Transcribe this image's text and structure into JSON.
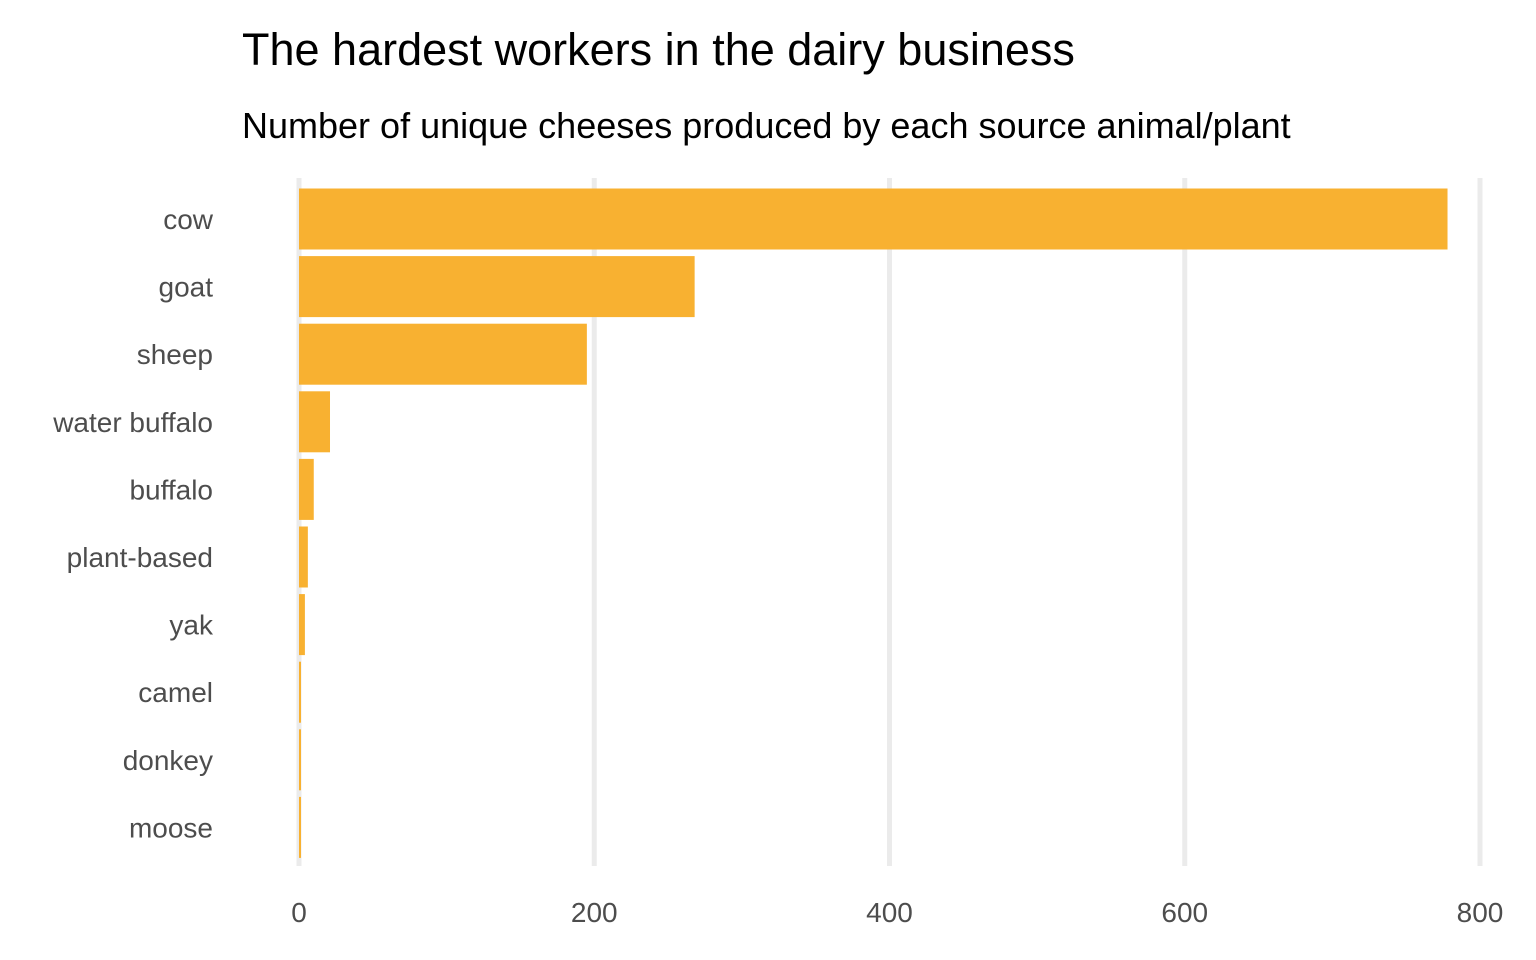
{
  "title": "The hardest workers in the dairy business",
  "subtitle": "Number of unique cheeses produced by each source animal/plant",
  "chart_data": {
    "type": "bar",
    "orientation": "horizontal",
    "categories": [
      "cow",
      "goat",
      "sheep",
      "water buffalo",
      "buffalo",
      "plant-based",
      "yak",
      "camel",
      "donkey",
      "moose"
    ],
    "values": [
      778,
      268,
      195,
      21,
      10,
      6,
      4,
      1,
      1,
      1
    ],
    "xlim": [
      0,
      800
    ],
    "xticks": [
      0,
      200,
      400,
      600,
      800
    ],
    "xlabel": "",
    "ylabel": "",
    "grid": "vertical major lines",
    "legend": "none",
    "bar_color": "#F8B131",
    "grid_color": "#EBEBEB"
  }
}
